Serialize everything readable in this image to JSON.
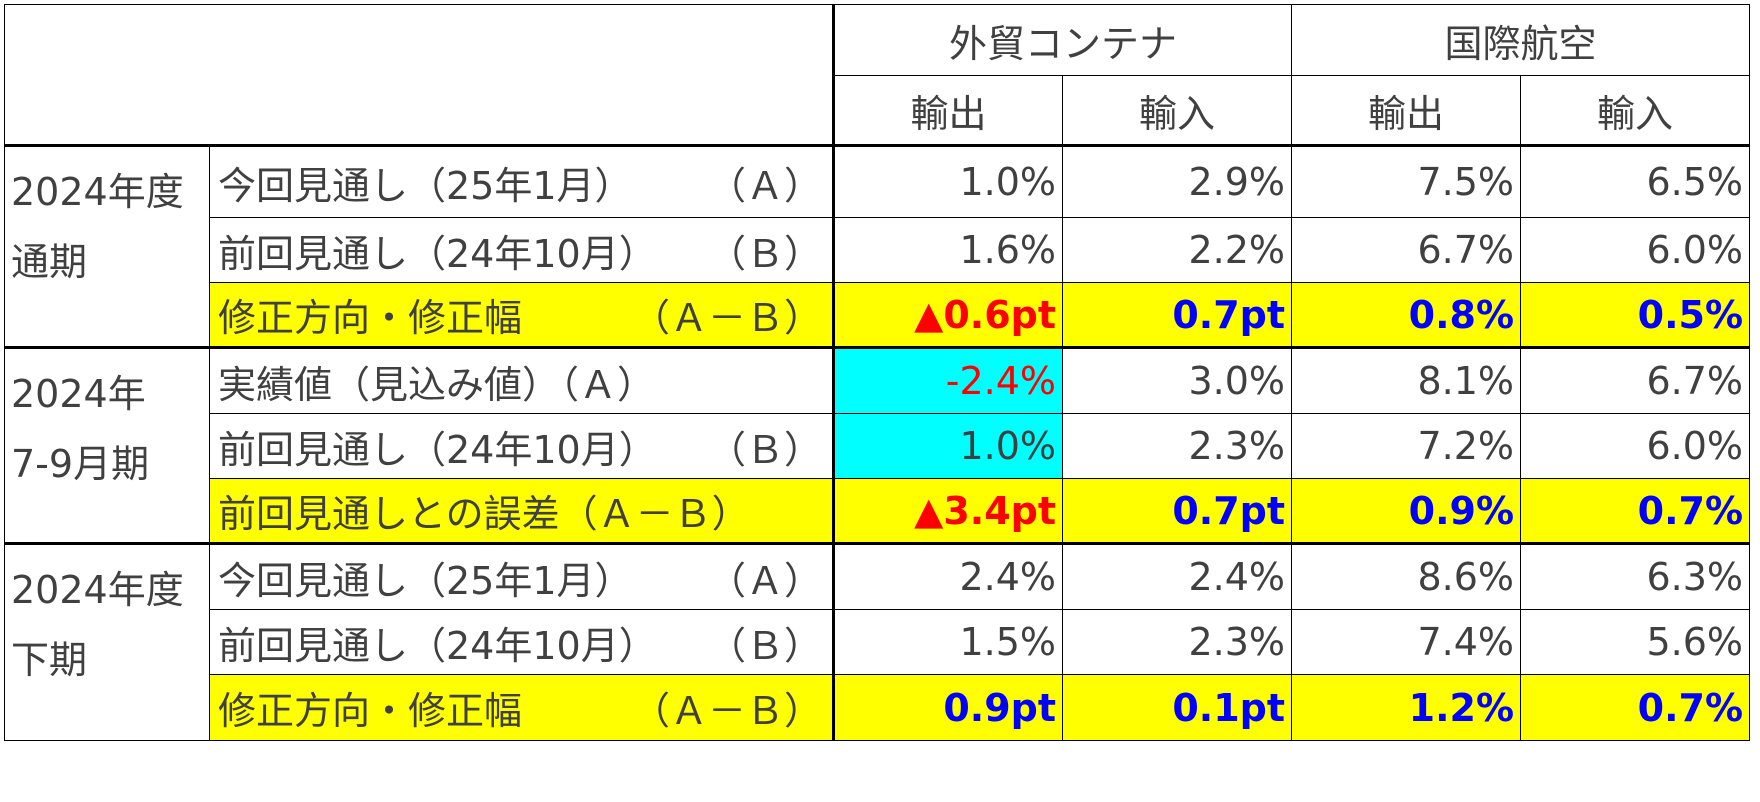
{
  "header": {
    "group1": "外貿コンテナ",
    "group2": "国際航空",
    "export": "輸出",
    "import": "輸入"
  },
  "sections": [
    {
      "period_line1": "2024年度",
      "period_line2": "通期",
      "rows": [
        {
          "label": "今回見通し（25年1月）",
          "tag": "（Ａ）",
          "values": [
            "1.0%",
            "2.9%",
            "7.5%",
            "6.5%"
          ]
        },
        {
          "label": "前回見通し（24年10月）",
          "tag": "（Ｂ）",
          "values": [
            "1.6%",
            "2.2%",
            "6.7%",
            "6.0%"
          ]
        },
        {
          "label": "修正方向・修正幅",
          "tag": "（Ａ－Ｂ）",
          "values": [
            "▲0.6pt",
            "0.7pt",
            "0.8%",
            "0.5%"
          ]
        }
      ]
    },
    {
      "period_line1": "2024年",
      "period_line2": "7-9月期",
      "rows": [
        {
          "label": "実績値（見込み値）（Ａ）",
          "tag": "",
          "values": [
            "-2.4%",
            "3.0%",
            "8.1%",
            "6.7%"
          ]
        },
        {
          "label": "前回見通し（24年10月）",
          "tag": "（Ｂ）",
          "values": [
            "1.0%",
            "2.3%",
            "7.2%",
            "6.0%"
          ]
        },
        {
          "label": "前回見通しとの誤差（Ａ－Ｂ）",
          "tag": "",
          "values": [
            "▲3.4pt",
            "0.7pt",
            "0.9%",
            "0.7%"
          ]
        }
      ]
    },
    {
      "period_line1": "2024年度",
      "period_line2": "下期",
      "rows": [
        {
          "label": "今回見通し（25年1月）",
          "tag": "（Ａ）",
          "values": [
            "2.4%",
            "2.4%",
            "8.6%",
            "6.3%"
          ]
        },
        {
          "label": "前回見通し（24年10月）",
          "tag": "（Ｂ）",
          "values": [
            "1.5%",
            "2.3%",
            "7.4%",
            "5.6%"
          ]
        },
        {
          "label": "修正方向・修正幅",
          "tag": "（Ａ－Ｂ）",
          "values": [
            "0.9pt",
            "0.1pt",
            "1.2%",
            "0.7%"
          ]
        }
      ]
    }
  ],
  "colors": {
    "highlight": "#ffff00",
    "cyan": "#00ffff",
    "positive": "#0000ff",
    "negative": "#ff0000"
  }
}
